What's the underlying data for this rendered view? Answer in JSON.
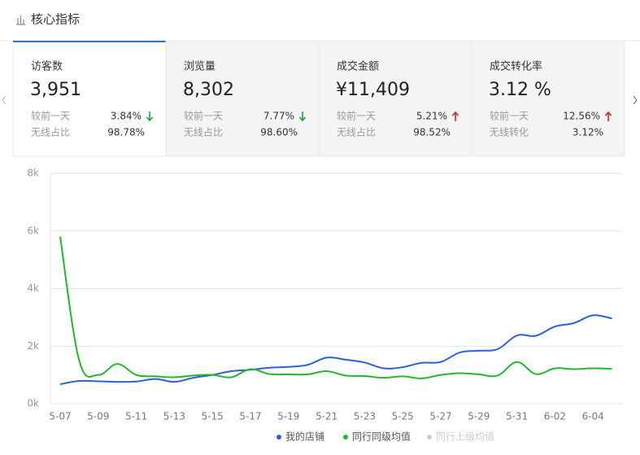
{
  "header": {
    "title": "核心指标"
  },
  "cards": [
    {
      "label": "访客数",
      "value": "3,951",
      "rows": [
        {
          "label": "较前一天",
          "value": "3.84%",
          "trend": "down"
        },
        {
          "label": "无线占比",
          "value": "98.78%"
        }
      ],
      "selected": true
    },
    {
      "label": "浏览量",
      "value": "8,302",
      "rows": [
        {
          "label": "较前一天",
          "value": "7.77%",
          "trend": "down"
        },
        {
          "label": "无线占比",
          "value": "98.60%"
        }
      ]
    },
    {
      "label": "成交金额",
      "value": "¥11,409",
      "rows": [
        {
          "label": "较前一天",
          "value": "5.21%",
          "trend": "up"
        },
        {
          "label": "无线占比",
          "value": "98.52%"
        }
      ]
    },
    {
      "label": "成交转化率",
      "value": "3.12 %",
      "rows": [
        {
          "label": "较前一天",
          "value": "12.56%",
          "trend": "up"
        },
        {
          "label": "无线转化",
          "value": "3.12%"
        }
      ]
    }
  ],
  "chart_data": {
    "type": "line",
    "categories": [
      "5-07",
      null,
      "5-09",
      null,
      "5-11",
      null,
      "5-13",
      null,
      "5-15",
      null,
      "5-17",
      null,
      "5-19",
      null,
      "5-21",
      null,
      "5-23",
      null,
      "5-25",
      null,
      "5-27",
      null,
      "5-29",
      null,
      "5-31",
      null,
      "6-02",
      null,
      "6-04",
      null
    ],
    "series": [
      {
        "name": "我的店铺",
        "color": "#2f5fd8",
        "values": [
          680,
          790,
          780,
          760,
          770,
          860,
          760,
          900,
          1000,
          1130,
          1180,
          1250,
          1280,
          1350,
          1600,
          1530,
          1430,
          1230,
          1270,
          1420,
          1450,
          1780,
          1840,
          1900,
          2370,
          2360,
          2680,
          2800,
          3070,
          2960
        ]
      },
      {
        "name": "同行同级均值",
        "color": "#22b82b",
        "values": [
          5800,
          1500,
          1000,
          1380,
          1000,
          950,
          920,
          980,
          1000,
          920,
          1200,
          1030,
          1020,
          1020,
          1130,
          980,
          960,
          900,
          950,
          880,
          1000,
          1060,
          1020,
          980,
          1450,
          1030,
          1230,
          1200,
          1230,
          1210
        ]
      },
      {
        "name": "同行上级均值",
        "color": "#cccccc",
        "values": [
          null,
          null,
          null,
          null,
          null,
          null,
          null,
          null,
          null,
          null,
          null,
          null,
          null,
          null,
          null,
          null,
          null,
          null,
          null,
          null,
          null,
          null,
          null,
          null,
          null,
          null,
          null,
          null,
          null,
          null
        ]
      }
    ],
    "ylim": [
      0,
      8000
    ],
    "yticks": [
      {
        "value": 0,
        "label": "0k"
      },
      {
        "value": 2000,
        "label": "2k"
      },
      {
        "value": 4000,
        "label": "4k"
      },
      {
        "value": 6000,
        "label": "6k"
      },
      {
        "value": 8000,
        "label": "8k"
      }
    ],
    "grid": true,
    "legend": "bottom"
  }
}
